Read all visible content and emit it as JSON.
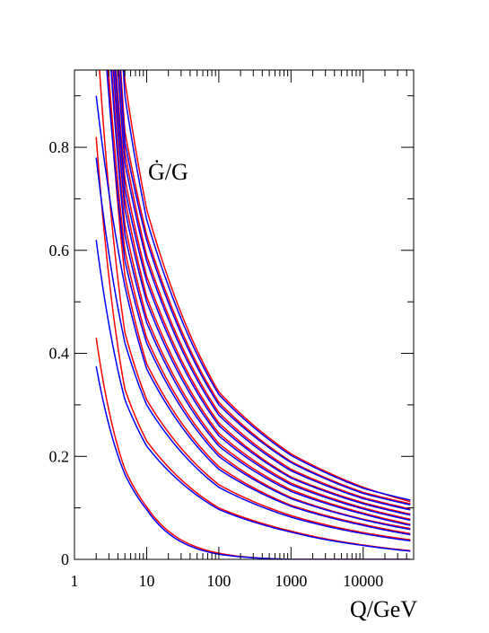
{
  "chart_data": {
    "type": "line",
    "title": "",
    "annotation": "Ġ/G",
    "xlabel": "Q/GeV",
    "ylabel": "",
    "x_scale": "log",
    "xlim": [
      1,
      50000
    ],
    "ylim": [
      0,
      0.95
    ],
    "grid": false,
    "x_tick_labels": [
      "1",
      "10",
      "100",
      "1000",
      "10000"
    ],
    "y_tick_labels": [
      "0",
      "0.2",
      "0.4",
      "0.6",
      "0.8"
    ],
    "series_colors": {
      "red": "#ff0000",
      "blue": "#0000ff"
    },
    "series": [
      {
        "color": "red",
        "x": [
          2,
          5,
          10,
          100,
          1000,
          10000,
          45000
        ],
        "y": [
          0.43,
          0.175,
          0.102,
          0.012,
          0.0,
          0.0,
          0.0
        ]
      },
      {
        "color": "blue",
        "x": [
          2,
          5,
          10,
          100,
          1000,
          10000,
          45000
        ],
        "y": [
          0.375,
          0.165,
          0.097,
          0.01,
          0.0,
          0.0,
          0.0
        ]
      },
      {
        "color": "red",
        "x": [
          2,
          5,
          10,
          100,
          1000,
          10000,
          45000
        ],
        "y": [
          0.82,
          0.33,
          0.23,
          0.1,
          0.055,
          0.028,
          0.017
        ]
      },
      {
        "color": "blue",
        "x": [
          2,
          5,
          10,
          100,
          1000,
          10000,
          45000
        ],
        "y": [
          0.62,
          0.31,
          0.22,
          0.097,
          0.053,
          0.027,
          0.016
        ]
      },
      {
        "color": "red",
        "x": [
          2,
          5,
          10,
          100,
          1000,
          10000,
          45000
        ],
        "y": [
          1.05,
          0.44,
          0.31,
          0.145,
          0.085,
          0.052,
          0.038
        ]
      },
      {
        "color": "blue",
        "x": [
          2,
          5,
          10,
          100,
          1000,
          10000,
          45000
        ],
        "y": [
          0.78,
          0.42,
          0.3,
          0.14,
          0.082,
          0.05,
          0.036
        ]
      },
      {
        "color": "red",
        "x": [
          2.5,
          5,
          10,
          100,
          1000,
          10000,
          45000
        ],
        "y": [
          1.1,
          0.55,
          0.38,
          0.18,
          0.105,
          0.068,
          0.05
        ]
      },
      {
        "color": "blue",
        "x": [
          2,
          5,
          10,
          100,
          1000,
          10000,
          45000
        ],
        "y": [
          0.9,
          0.53,
          0.37,
          0.175,
          0.103,
          0.066,
          0.048
        ]
      },
      {
        "color": "red",
        "x": [
          2.5,
          5,
          10,
          100,
          1000,
          10000,
          45000
        ],
        "y": [
          1.1,
          0.6,
          0.43,
          0.205,
          0.12,
          0.078,
          0.06
        ]
      },
      {
        "color": "blue",
        "x": [
          2.5,
          5,
          10,
          100,
          1000,
          10000,
          45000
        ],
        "y": [
          1.05,
          0.58,
          0.42,
          0.2,
          0.118,
          0.077,
          0.058
        ]
      },
      {
        "color": "red",
        "x": [
          2.8,
          5,
          10,
          100,
          1000,
          10000,
          45000
        ],
        "y": [
          1.1,
          0.65,
          0.47,
          0.225,
          0.135,
          0.09,
          0.068
        ]
      },
      {
        "color": "blue",
        "x": [
          2.8,
          5,
          10,
          100,
          1000,
          10000,
          45000
        ],
        "y": [
          1.08,
          0.63,
          0.46,
          0.22,
          0.132,
          0.088,
          0.066
        ]
      },
      {
        "color": "red",
        "x": [
          3,
          5,
          10,
          100,
          1000,
          10000,
          45000
        ],
        "y": [
          1.1,
          0.7,
          0.51,
          0.245,
          0.148,
          0.1,
          0.078
        ]
      },
      {
        "color": "blue",
        "x": [
          3,
          5,
          10,
          100,
          1000,
          10000,
          45000
        ],
        "y": [
          1.08,
          0.68,
          0.5,
          0.24,
          0.145,
          0.098,
          0.076
        ]
      },
      {
        "color": "red",
        "x": [
          3.2,
          5,
          10,
          100,
          1000,
          10000,
          45000
        ],
        "y": [
          1.1,
          0.74,
          0.55,
          0.265,
          0.16,
          0.11,
          0.088
        ]
      },
      {
        "color": "blue",
        "x": [
          3.2,
          5,
          10,
          100,
          1000,
          10000,
          45000
        ],
        "y": [
          1.08,
          0.72,
          0.54,
          0.26,
          0.158,
          0.108,
          0.086
        ]
      },
      {
        "color": "red",
        "x": [
          3.5,
          5,
          10,
          100,
          1000,
          10000,
          45000
        ],
        "y": [
          1.1,
          0.79,
          0.59,
          0.285,
          0.175,
          0.12,
          0.098
        ]
      },
      {
        "color": "blue",
        "x": [
          3.5,
          5,
          10,
          100,
          1000,
          10000,
          45000
        ],
        "y": [
          1.08,
          0.77,
          0.58,
          0.28,
          0.172,
          0.118,
          0.096
        ]
      },
      {
        "color": "red",
        "x": [
          3.8,
          5,
          10,
          100,
          1000,
          10000,
          45000
        ],
        "y": [
          1.1,
          0.83,
          0.63,
          0.305,
          0.19,
          0.13,
          0.108
        ]
      },
      {
        "color": "blue",
        "x": [
          3.8,
          5,
          10,
          100,
          1000,
          10000,
          45000
        ],
        "y": [
          1.08,
          0.81,
          0.62,
          0.3,
          0.188,
          0.128,
          0.106
        ]
      },
      {
        "color": "red",
        "x": [
          4.2,
          5,
          10,
          100,
          1000,
          10000,
          45000
        ],
        "y": [
          1.1,
          0.93,
          0.68,
          0.325,
          0.205,
          0.14,
          0.112
        ]
      },
      {
        "color": "blue",
        "x": [
          4.2,
          5,
          10,
          100,
          1000,
          10000,
          45000
        ],
        "y": [
          1.08,
          0.9,
          0.66,
          0.32,
          0.202,
          0.138,
          0.115
        ]
      }
    ]
  }
}
